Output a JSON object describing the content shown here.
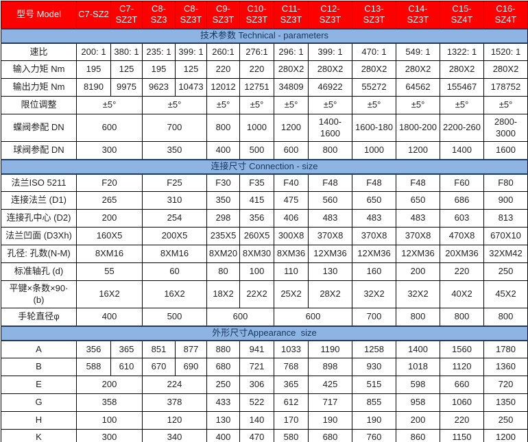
{
  "colors": {
    "header_bg": "#FF0000",
    "header_text": "#FFFFFF",
    "section_bg": "#8DB4E2",
    "section_text": "#17375E",
    "border": "#000000",
    "body_text": "#222222",
    "bottom_bar": "#42506A"
  },
  "header": {
    "model_label": "型号 Model",
    "columns": [
      "C7-SZ2",
      "C7-\nSZ2T",
      "C8-SZ3",
      "C8-\nSZ3T",
      "C9-\nSZ3T",
      "C10-\nSZ3T",
      "C11-\nSZ3T",
      "C12-SZ3T",
      "C13-SZ3T",
      "C14-SZ3T",
      "C15-SZ4T",
      "C16-SZ4T"
    ]
  },
  "sections": [
    {
      "title": "技术参数 Technical - parameters",
      "rows": [
        {
          "label": "速比",
          "cells": [
            {
              "t": "200: 1"
            },
            {
              "t": "380: 1"
            },
            {
              "t": "235: 1"
            },
            {
              "t": "399: 1"
            },
            {
              "t": "260:1"
            },
            {
              "t": "276:1"
            },
            {
              "t": "296: 1"
            },
            {
              "t": "399: 1"
            },
            {
              "t": "470: 1"
            },
            {
              "t": "549: 1"
            },
            {
              "t": "1322: 1"
            },
            {
              "t": "1520: 1"
            }
          ]
        },
        {
          "label": "输入力矩 Nm",
          "cells": [
            {
              "t": "195"
            },
            {
              "t": "125"
            },
            {
              "t": "195"
            },
            {
              "t": "125"
            },
            {
              "t": "220"
            },
            {
              "t": "220"
            },
            {
              "t": "280X2"
            },
            {
              "t": "280X2"
            },
            {
              "t": "280X2"
            },
            {
              "t": "280X2"
            },
            {
              "t": "280X2"
            },
            {
              "t": "280X2"
            }
          ]
        },
        {
          "label": "输出力矩 Nm",
          "cells": [
            {
              "t": "8190"
            },
            {
              "t": "9975"
            },
            {
              "t": "9623"
            },
            {
              "t": "10473"
            },
            {
              "t": "12012"
            },
            {
              "t": "12751"
            },
            {
              "t": "34809"
            },
            {
              "t": "46922"
            },
            {
              "t": "55272"
            },
            {
              "t": "64562"
            },
            {
              "t": "155467"
            },
            {
              "t": "178752"
            }
          ]
        },
        {
          "label": "限位调整",
          "cells": [
            {
              "t": "±5°",
              "s": 2
            },
            {
              "t": "±5°",
              "s": 2
            },
            {
              "t": "±5°"
            },
            {
              "t": "±5°"
            },
            {
              "t": "±5°"
            },
            {
              "t": "±5°"
            },
            {
              "t": "±5°"
            },
            {
              "t": "±5°"
            },
            {
              "t": "±5°"
            },
            {
              "t": "±5°"
            }
          ]
        },
        {
          "label": "蝶阀参配 DN",
          "tall": true,
          "cells": [
            {
              "t": "600",
              "s": 2
            },
            {
              "t": "700",
              "s": 2
            },
            {
              "t": "800"
            },
            {
              "t": "1000"
            },
            {
              "t": "1200"
            },
            {
              "t": "1400-\n1600"
            },
            {
              "t": "1600-180"
            },
            {
              "t": "1800-200"
            },
            {
              "t": "2200-260"
            },
            {
              "t": "2800-\n3000"
            }
          ]
        },
        {
          "label": "球阀参配 DN",
          "cells": [
            {
              "t": "300",
              "s": 2
            },
            {
              "t": "350",
              "s": 2
            },
            {
              "t": "400"
            },
            {
              "t": "500"
            },
            {
              "t": "600"
            },
            {
              "t": "800"
            },
            {
              "t": "1000"
            },
            {
              "t": "1200"
            },
            {
              "t": "1400"
            },
            {
              "t": "1600"
            }
          ]
        }
      ]
    },
    {
      "title": "连接尺寸 Connection - size",
      "rows": [
        {
          "label": "法兰ISO 5211",
          "cells": [
            {
              "t": "F20",
              "s": 2
            },
            {
              "t": "F25",
              "s": 2
            },
            {
              "t": "F30"
            },
            {
              "t": "F35"
            },
            {
              "t": "F40"
            },
            {
              "t": "F48"
            },
            {
              "t": "F48"
            },
            {
              "t": "F48"
            },
            {
              "t": "F60"
            },
            {
              "t": "F80"
            }
          ]
        },
        {
          "label": "连接法兰 (D1)",
          "cells": [
            {
              "t": "265",
              "s": 2
            },
            {
              "t": "310",
              "s": 2
            },
            {
              "t": "350"
            },
            {
              "t": "415"
            },
            {
              "t": "475"
            },
            {
              "t": "560"
            },
            {
              "t": "650"
            },
            {
              "t": "650"
            },
            {
              "t": "686"
            },
            {
              "t": "900"
            }
          ]
        },
        {
          "label": "连接孔中心 (D2)",
          "cells": [
            {
              "t": "200",
              "s": 2
            },
            {
              "t": "254",
              "s": 2
            },
            {
              "t": "298"
            },
            {
              "t": "356"
            },
            {
              "t": "406"
            },
            {
              "t": "483"
            },
            {
              "t": "483"
            },
            {
              "t": "483"
            },
            {
              "t": "603"
            },
            {
              "t": "813"
            }
          ]
        },
        {
          "label": "法兰凹面 (D3Xh)",
          "cells": [
            {
              "t": "160X5",
              "s": 2
            },
            {
              "t": "200X5",
              "s": 2
            },
            {
              "t": "235X5"
            },
            {
              "t": "260X5"
            },
            {
              "t": "300X8"
            },
            {
              "t": "370X8"
            },
            {
              "t": "370X8"
            },
            {
              "t": "370X8"
            },
            {
              "t": "470X8"
            },
            {
              "t": "670X10"
            }
          ]
        },
        {
          "label": "孔径: 孔数(N-M)",
          "cells": [
            {
              "t": "8XM16",
              "s": 2
            },
            {
              "t": "8XM16",
              "s": 2
            },
            {
              "t": "8XM20"
            },
            {
              "t": "8XM30"
            },
            {
              "t": "8XM36"
            },
            {
              "t": "12XM36"
            },
            {
              "t": "12XM36"
            },
            {
              "t": "12XM36"
            },
            {
              "t": "20XM36"
            },
            {
              "t": "32XM42"
            }
          ]
        },
        {
          "label": "标准轴孔 (d)",
          "cells": [
            {
              "t": "55",
              "s": 2
            },
            {
              "t": "60",
              "s": 2
            },
            {
              "t": "80"
            },
            {
              "t": "100"
            },
            {
              "t": "110"
            },
            {
              "t": "130"
            },
            {
              "t": "160"
            },
            {
              "t": "200"
            },
            {
              "t": "220"
            },
            {
              "t": "250"
            }
          ]
        },
        {
          "label": "平键×条数×90·\n(b)",
          "tall": true,
          "cells": [
            {
              "t": "16X2",
              "s": 2
            },
            {
              "t": "16X2",
              "s": 2
            },
            {
              "t": "18X2"
            },
            {
              "t": "22X2"
            },
            {
              "t": "25X2"
            },
            {
              "t": "28X2"
            },
            {
              "t": "32X2"
            },
            {
              "t": "32X2"
            },
            {
              "t": "40X2"
            },
            {
              "t": "45X2"
            }
          ]
        },
        {
          "label": "手轮直径φ",
          "cells": [
            {
              "t": "400",
              "s": 2
            },
            {
              "t": "500",
              "s": 2
            },
            {
              "t": "600",
              "s": 2
            },
            {
              "t": "600",
              "s": 2
            },
            {
              "t": "700"
            },
            {
              "t": "800"
            },
            {
              "t": "800"
            },
            {
              "t": "800"
            }
          ]
        }
      ]
    },
    {
      "title": "外形尺寸Appearance  size",
      "rows": [
        {
          "label": "A",
          "cells": [
            {
              "t": "356"
            },
            {
              "t": "365"
            },
            {
              "t": "851"
            },
            {
              "t": "877"
            },
            {
              "t": "880"
            },
            {
              "t": "941"
            },
            {
              "t": "1033"
            },
            {
              "t": "1190"
            },
            {
              "t": "1258"
            },
            {
              "t": "1400"
            },
            {
              "t": "1560"
            },
            {
              "t": "1780"
            }
          ]
        },
        {
          "label": "B",
          "cells": [
            {
              "t": "588"
            },
            {
              "t": "610"
            },
            {
              "t": "670"
            },
            {
              "t": "690"
            },
            {
              "t": "680"
            },
            {
              "t": "721"
            },
            {
              "t": "768"
            },
            {
              "t": "898"
            },
            {
              "t": "930"
            },
            {
              "t": "1018"
            },
            {
              "t": "1120"
            },
            {
              "t": "1360"
            }
          ]
        },
        {
          "label": "E",
          "cells": [
            {
              "t": "200",
              "s": 2
            },
            {
              "t": "224",
              "s": 2
            },
            {
              "t": "250"
            },
            {
              "t": "306"
            },
            {
              "t": "365"
            },
            {
              "t": "425"
            },
            {
              "t": "515"
            },
            {
              "t": "598"
            },
            {
              "t": "660"
            },
            {
              "t": "720"
            }
          ]
        },
        {
          "label": "G",
          "cells": [
            {
              "t": "358",
              "s": 2
            },
            {
              "t": "378",
              "s": 2
            },
            {
              "t": "433"
            },
            {
              "t": "522"
            },
            {
              "t": "612"
            },
            {
              "t": "717"
            },
            {
              "t": "855"
            },
            {
              "t": "958"
            },
            {
              "t": "1060"
            },
            {
              "t": "1350"
            }
          ]
        },
        {
          "label": "H",
          "cells": [
            {
              "t": "100",
              "s": 2
            },
            {
              "t": "120",
              "s": 2
            },
            {
              "t": "130"
            },
            {
              "t": "140"
            },
            {
              "t": "170"
            },
            {
              "t": "190"
            },
            {
              "t": "190"
            },
            {
              "t": "200"
            },
            {
              "t": "220"
            },
            {
              "t": "250"
            }
          ]
        },
        {
          "label": "K",
          "cells": [
            {
              "t": "300",
              "s": 2
            },
            {
              "t": "340",
              "s": 2
            },
            {
              "t": "400"
            },
            {
              "t": "470"
            },
            {
              "t": "580"
            },
            {
              "t": "680"
            },
            {
              "t": "760"
            },
            {
              "t": "860"
            },
            {
              "t": "1150"
            },
            {
              "t": "1200"
            }
          ]
        }
      ]
    }
  ]
}
